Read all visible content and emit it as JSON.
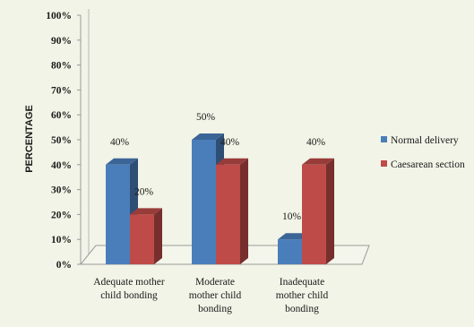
{
  "chart_data": {
    "type": "bar",
    "title": "",
    "xlabel": "",
    "ylabel": "PERCENTAGE",
    "ylim": [
      0,
      100
    ],
    "yticks": [
      "0%",
      "10%",
      "20%",
      "30%",
      "40%",
      "50%",
      "60%",
      "70%",
      "80%",
      "90%",
      "100%"
    ],
    "categories": [
      [
        "Adequate mother",
        "child bonding"
      ],
      [
        "Moderate",
        "mother child",
        "bonding"
      ],
      [
        "Inadequate",
        "mother child",
        "bonding"
      ]
    ],
    "series": [
      {
        "name": "Normal delivery",
        "values": [
          40,
          50,
          10
        ],
        "labels": [
          "40%",
          "50%",
          "10%"
        ],
        "color": "#4a7ebb"
      },
      {
        "name": "Caesarean section",
        "values": [
          20,
          40,
          40
        ],
        "labels": [
          "20%",
          "40%",
          "40%"
        ],
        "color": "#be4b48"
      }
    ],
    "grid": false,
    "legend_position": "right"
  }
}
